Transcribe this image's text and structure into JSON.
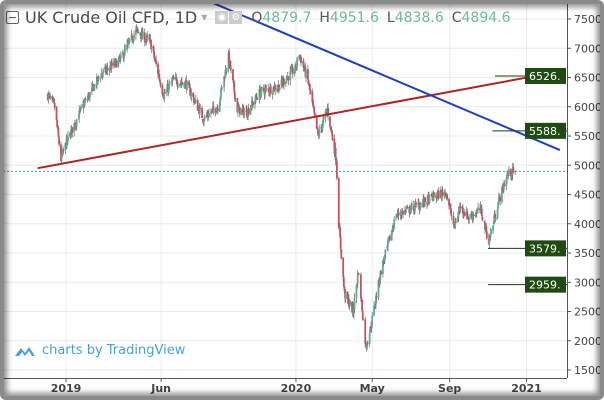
{
  "header": {
    "title": "UK Crude Oil CFD, 1D",
    "open_label": "O",
    "open": "4879.7",
    "high_label": "H",
    "high": "4951.6",
    "low_label": "L",
    "low": "4838.6",
    "close_label": "C",
    "close": "4894.6",
    "icons": [
      "collapse-icon",
      "eye-icon",
      "gear-icon"
    ]
  },
  "watermark": "charts by TradingView",
  "chart_data": {
    "type": "candlestick",
    "title": "UK Crude Oil CFD, 1D",
    "ylim": [
      1400,
      7650
    ],
    "y_ticks": [
      "7500.0",
      "7000.0",
      "6500.0",
      "6000.0",
      "5500.0",
      "5000.0",
      "4500.0",
      "4000.0",
      "3500.0",
      "3000.0",
      "2500.0",
      "2000.0",
      "1500.0"
    ],
    "x_ticks": [
      {
        "label": "2019",
        "date": "2019-01-01"
      },
      {
        "label": "Jun",
        "date": "2019-06-01"
      },
      {
        "label": "2020",
        "date": "2020-01-01"
      },
      {
        "label": "May",
        "date": "2020-05-01"
      },
      {
        "label": "Sep",
        "date": "2020-09-01"
      },
      {
        "label": "2021",
        "date": "2021-01-01"
      }
    ],
    "grid": true,
    "approx_closes": [
      [
        "2018-12-03",
        6200
      ],
      [
        "2018-12-14",
        6000
      ],
      [
        "2018-12-24",
        5100
      ],
      [
        "2019-01-02",
        5400
      ],
      [
        "2019-01-25",
        5950
      ],
      [
        "2019-02-25",
        6550
      ],
      [
        "2019-03-28",
        6800
      ],
      [
        "2019-04-22",
        7300
      ],
      [
        "2019-05-15",
        7100
      ],
      [
        "2019-06-05",
        6200
      ],
      [
        "2019-06-20",
        6450
      ],
      [
        "2019-07-10",
        6400
      ],
      [
        "2019-08-07",
        5800
      ],
      [
        "2019-08-30",
        6000
      ],
      [
        "2019-09-16",
        6850
      ],
      [
        "2019-09-30",
        5950
      ],
      [
        "2019-10-15",
        5900
      ],
      [
        "2019-11-05",
        6250
      ],
      [
        "2019-12-05",
        6350
      ],
      [
        "2019-12-31",
        6650
      ],
      [
        "2020-01-06",
        6900
      ],
      [
        "2020-01-20",
        6450
      ],
      [
        "2020-02-05",
        5500
      ],
      [
        "2020-02-20",
        5950
      ],
      [
        "2020-03-05",
        5100
      ],
      [
        "2020-03-09",
        4000
      ],
      [
        "2020-03-18",
        2800
      ],
      [
        "2020-04-01",
        2500
      ],
      [
        "2020-04-09",
        3200
      ],
      [
        "2020-04-21",
        1900
      ],
      [
        "2020-04-28",
        2200
      ],
      [
        "2020-05-15",
        3200
      ],
      [
        "2020-06-08",
        4150
      ],
      [
        "2020-07-01",
        4250
      ],
      [
        "2020-08-05",
        4450
      ],
      [
        "2020-08-26",
        4550
      ],
      [
        "2020-09-08",
        3950
      ],
      [
        "2020-09-18",
        4300
      ],
      [
        "2020-10-01",
        4100
      ],
      [
        "2020-10-20",
        4250
      ],
      [
        "2020-11-02",
        3700
      ],
      [
        "2020-11-18",
        4400
      ],
      [
        "2020-12-02",
        4850
      ],
      [
        "2020-12-14",
        4894.6
      ]
    ],
    "current_price": 4894.6,
    "trendlines": [
      {
        "color": "#b22222",
        "from": [
          "2018-11-17",
          4950
        ],
        "to": [
          "2021-01-22",
          6540
        ]
      },
      {
        "color": "#1f3fbf",
        "from": [
          "2019-08-10",
          7830
        ],
        "to": [
          "2021-02-23",
          5260
        ]
      }
    ],
    "levels": [
      {
        "label": "6526.",
        "value": 6526,
        "from": "2020-11-12"
      },
      {
        "label": "5588.",
        "value": 5588,
        "from": "2020-11-08"
      },
      {
        "label": "3579.",
        "value": 3579,
        "from": "2020-11-01"
      },
      {
        "label": "2959.",
        "value": 2959,
        "from": "2020-11-01"
      }
    ],
    "colors": {
      "up": "#5fae8c",
      "down": "#c2525e",
      "level_box": "#1f4a12",
      "price_line": "#3aa59a"
    }
  }
}
